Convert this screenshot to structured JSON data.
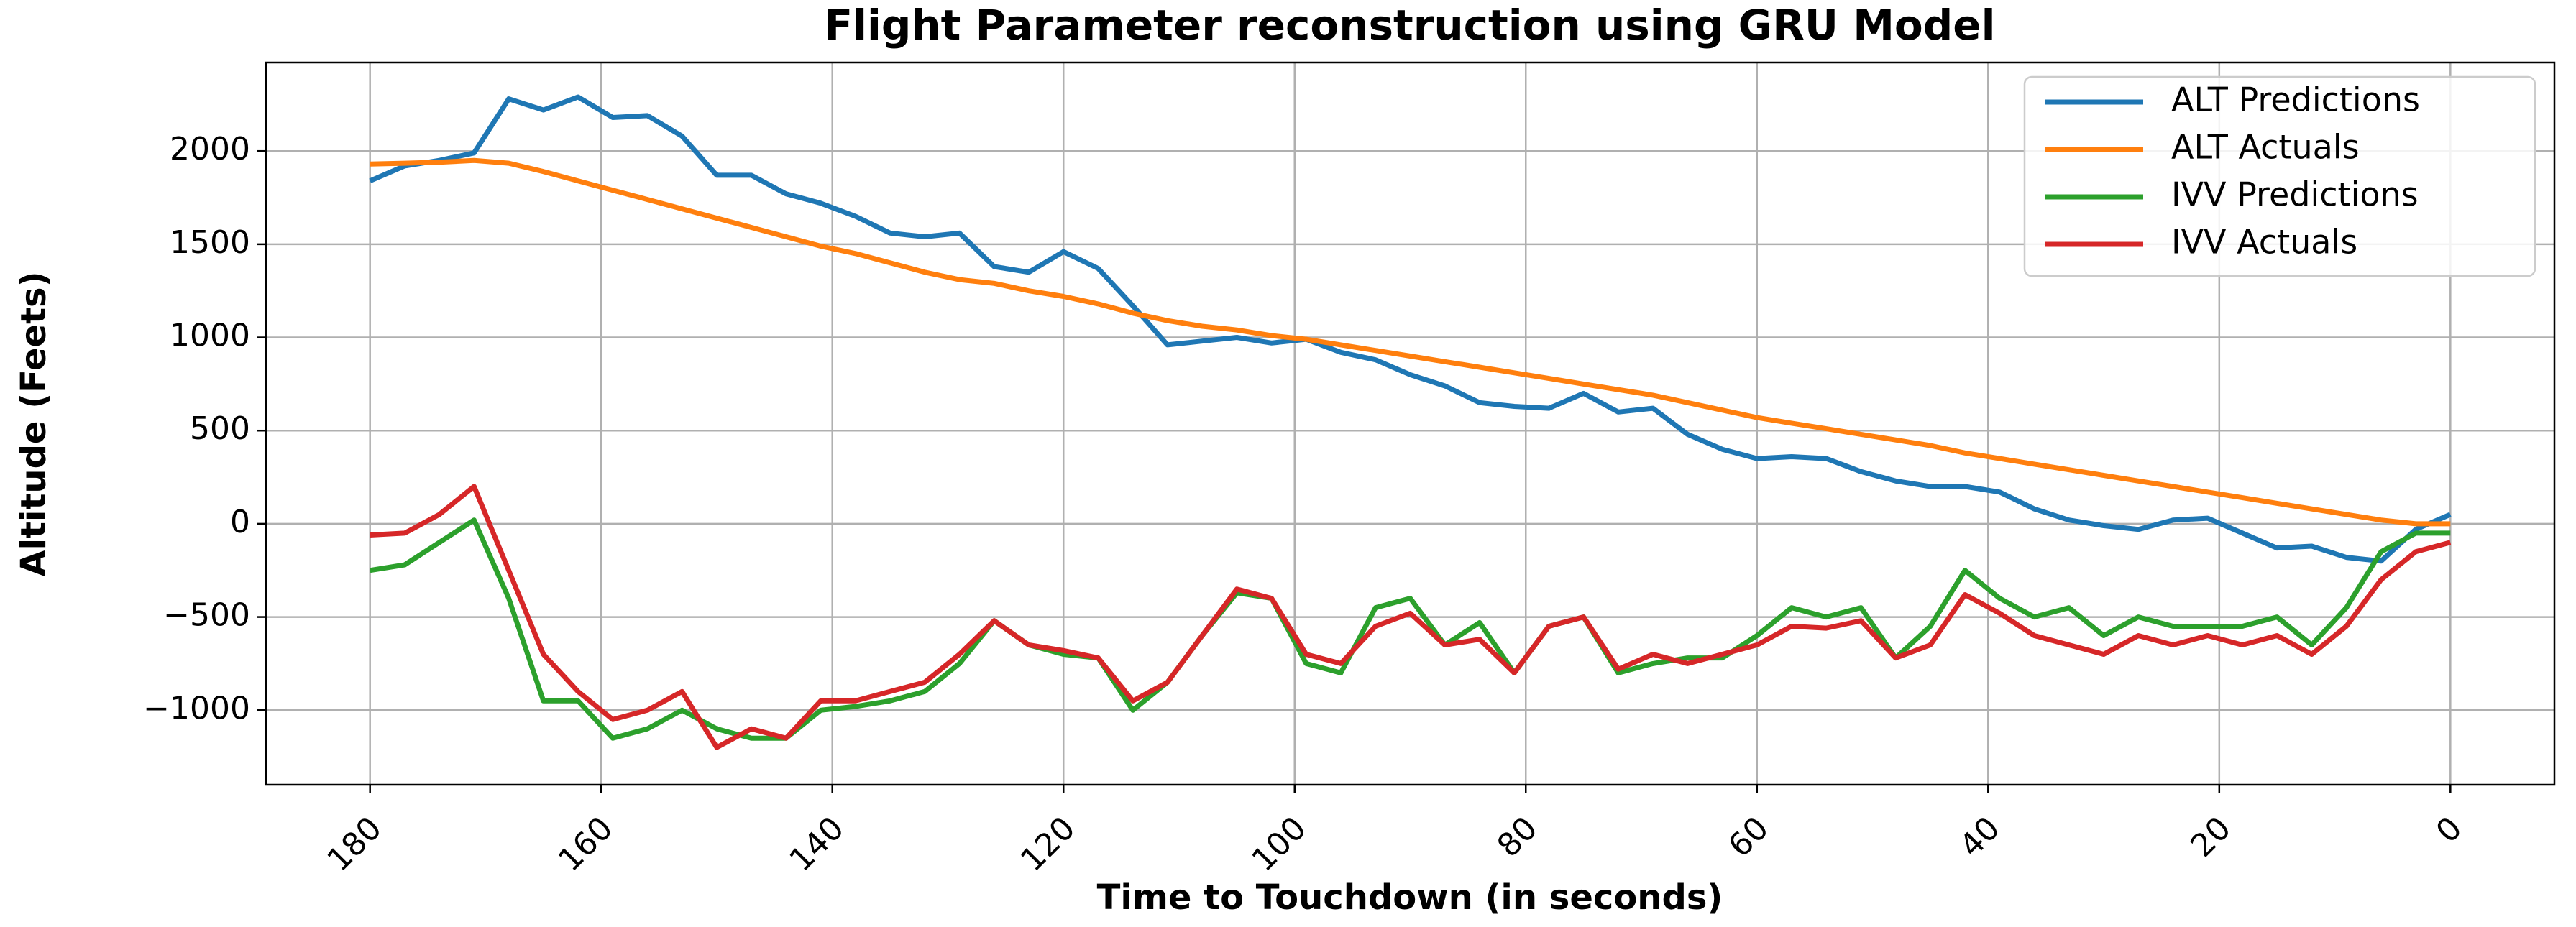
{
  "chart_data": {
    "type": "line",
    "title": "Flight Parameter reconstruction using GRU Model",
    "xlabel": "Time to Touchdown (in seconds)",
    "ylabel": "Altitude (Feets)",
    "x": [
      180,
      177,
      174,
      171,
      168,
      165,
      162,
      159,
      156,
      153,
      150,
      147,
      144,
      141,
      138,
      135,
      132,
      129,
      126,
      123,
      120,
      117,
      114,
      111,
      108,
      105,
      102,
      99,
      96,
      93,
      90,
      87,
      84,
      81,
      78,
      75,
      72,
      69,
      66,
      63,
      60,
      57,
      54,
      51,
      48,
      45,
      42,
      39,
      36,
      33,
      30,
      27,
      24,
      21,
      18,
      15,
      12,
      9,
      6,
      3,
      0
    ],
    "series": [
      {
        "name": "ALT Predictions",
        "color": "#1f77b4",
        "values": [
          1840,
          1920,
          1950,
          1990,
          2280,
          2220,
          2290,
          2180,
          2190,
          2080,
          1870,
          1870,
          1770,
          1720,
          1650,
          1560,
          1540,
          1560,
          1380,
          1350,
          1460,
          1370,
          1170,
          960,
          980,
          1000,
          970,
          990,
          920,
          880,
          800,
          740,
          650,
          630,
          620,
          700,
          600,
          620,
          480,
          400,
          350,
          360,
          350,
          280,
          230,
          200,
          200,
          170,
          80,
          20,
          -10,
          -30,
          20,
          30,
          -50,
          -130,
          -120,
          -180,
          -200,
          -30,
          50
        ]
      },
      {
        "name": "ALT Actuals",
        "color": "#ff7f0e",
        "values": [
          1930,
          1935,
          1940,
          1950,
          1935,
          1890,
          1840,
          1790,
          1740,
          1690,
          1640,
          1590,
          1540,
          1490,
          1450,
          1400,
          1350,
          1310,
          1290,
          1250,
          1220,
          1180,
          1130,
          1090,
          1060,
          1040,
          1010,
          990,
          960,
          930,
          900,
          870,
          840,
          810,
          780,
          750,
          720,
          690,
          650,
          610,
          570,
          540,
          510,
          480,
          450,
          420,
          380,
          350,
          320,
          290,
          260,
          230,
          200,
          170,
          140,
          110,
          80,
          50,
          20,
          0,
          0
        ]
      },
      {
        "name": "IVV Predictions",
        "color": "#2ca02c",
        "values": [
          -250,
          -220,
          -100,
          20,
          -400,
          -950,
          -950,
          -1150,
          -1100,
          -1000,
          -1100,
          -1150,
          -1150,
          -1000,
          -980,
          -950,
          -900,
          -750,
          -520,
          -650,
          -700,
          -720,
          -1000,
          -850,
          -600,
          -370,
          -400,
          -750,
          -800,
          -450,
          -400,
          -650,
          -530,
          -800,
          -550,
          -500,
          -800,
          -750,
          -720,
          -720,
          -600,
          -450,
          -500,
          -450,
          -720,
          -550,
          -250,
          -400,
          -500,
          -450,
          -600,
          -500,
          -550,
          -550,
          -550,
          -500,
          -650,
          -450,
          -150,
          -50,
          -50
        ]
      },
      {
        "name": "IVV Actuals",
        "color": "#d62728",
        "values": [
          -60,
          -50,
          50,
          200,
          -250,
          -700,
          -900,
          -1050,
          -1000,
          -900,
          -1200,
          -1100,
          -1150,
          -950,
          -950,
          -900,
          -850,
          -700,
          -520,
          -650,
          -680,
          -720,
          -950,
          -850,
          -600,
          -350,
          -400,
          -700,
          -750,
          -550,
          -480,
          -650,
          -620,
          -800,
          -550,
          -500,
          -780,
          -700,
          -750,
          -700,
          -650,
          -550,
          -560,
          -520,
          -720,
          -650,
          -380,
          -480,
          -600,
          -650,
          -700,
          -600,
          -650,
          -600,
          -650,
          -600,
          -700,
          -550,
          -300,
          -150,
          -100
        ]
      }
    ],
    "xlim": [
      189,
      -9
    ],
    "xticks": [
      180,
      160,
      140,
      120,
      100,
      80,
      60,
      40,
      20,
      0
    ],
    "ylim": [
      -1400,
      2475
    ],
    "yticks": [
      {
        "value": -1000,
        "label": "−1000"
      },
      {
        "value": -500,
        "label": "−500"
      },
      0,
      500,
      1000,
      1500,
      2000
    ],
    "grid": true,
    "legend": "upper right"
  }
}
